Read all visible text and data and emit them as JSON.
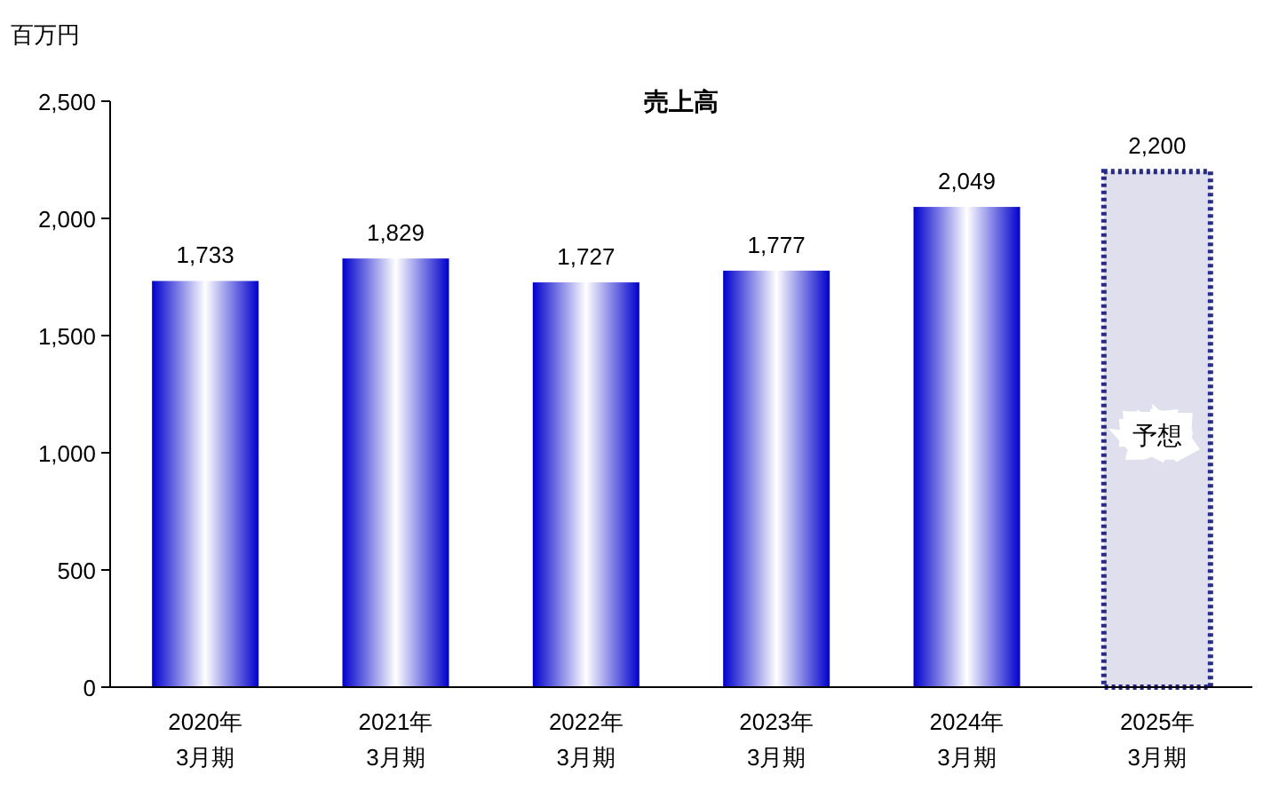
{
  "chart_data": {
    "type": "bar",
    "title": "売上高",
    "ylabel": "百万円",
    "categories": [
      "2020年\n3月期",
      "2021年\n3月期",
      "2022年\n3月期",
      "2023年\n3月期",
      "2024年\n3月期",
      "2025年\n3月期"
    ],
    "series": [
      {
        "color": "#0000cc",
        "values": [
          1733,
          1829,
          1727,
          1777,
          2049,
          null
        ],
        "value_labels": [
          "1,733",
          "1,829",
          "1,727",
          "1,777",
          "2,049",
          null
        ]
      },
      {
        "color": "#2a2a88",
        "line_style": "dotted",
        "values": [
          null,
          null,
          null,
          null,
          null,
          2200
        ],
        "value_labels": [
          null,
          null,
          null,
          null,
          null,
          "2,200"
        ]
      }
    ],
    "ylim": [
      0,
      2500
    ],
    "yticks": [
      0,
      500,
      {
        "value": 1000,
        "label": "1,000"
      },
      {
        "value": 1500,
        "label": "1,500"
      },
      {
        "value": 2000,
        "label": "2,000"
      },
      {
        "value": 2500,
        "label": "2,500"
      }
    ],
    "annotations": [
      "予想"
    ]
  }
}
